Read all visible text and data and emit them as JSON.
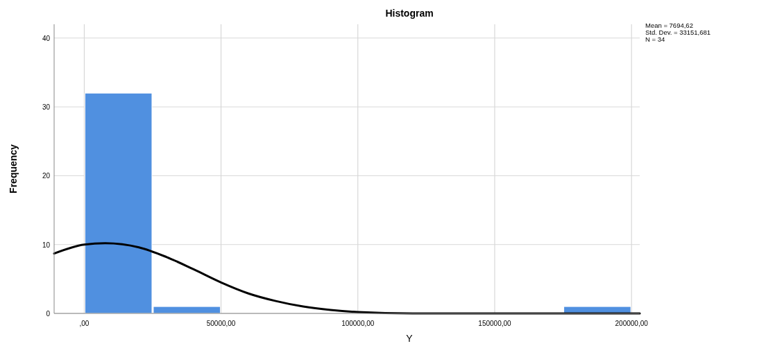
{
  "chart_data": {
    "type": "histogram",
    "title": "Histogram",
    "xlabel": "Y",
    "ylabel": "Frequency",
    "bins": [
      0,
      25000,
      50000,
      75000,
      100000,
      125000,
      150000,
      175000,
      200000
    ],
    "values": [
      32,
      1,
      0,
      0,
      0,
      0,
      0,
      1
    ],
    "color": "#5090e0",
    "series": [
      {
        "type": "line",
        "color": "#000000",
        "x": [
          -11000,
          0,
          7695,
          20000,
          30000,
          40000,
          50000,
          60000,
          70000,
          80000,
          90000,
          100000,
          120000,
          150000,
          203000
        ],
        "values": [
          8.7,
          10.0,
          10.2,
          9.6,
          8.2,
          6.4,
          4.5,
          2.9,
          1.8,
          1.0,
          0.5,
          0.2,
          0.0,
          0.0,
          0.0
        ]
      }
    ],
    "xlim": [
      -11000,
      203000
    ],
    "xticks": [
      {
        "value": 0,
        "label": ",00"
      },
      {
        "value": 50000,
        "label": "50000,00"
      },
      {
        "value": 100000,
        "label": "100000,00"
      },
      {
        "value": 150000,
        "label": "150000,00"
      },
      {
        "value": 200000,
        "label": "200000,00"
      }
    ],
    "ylim": [
      0,
      42
    ],
    "yticks": [
      0,
      10,
      20,
      30,
      40
    ],
    "grid": true,
    "annotations": [
      "Mean = 7694,62",
      "Std. Dev. = 33151,681",
      "N = 34"
    ]
  }
}
